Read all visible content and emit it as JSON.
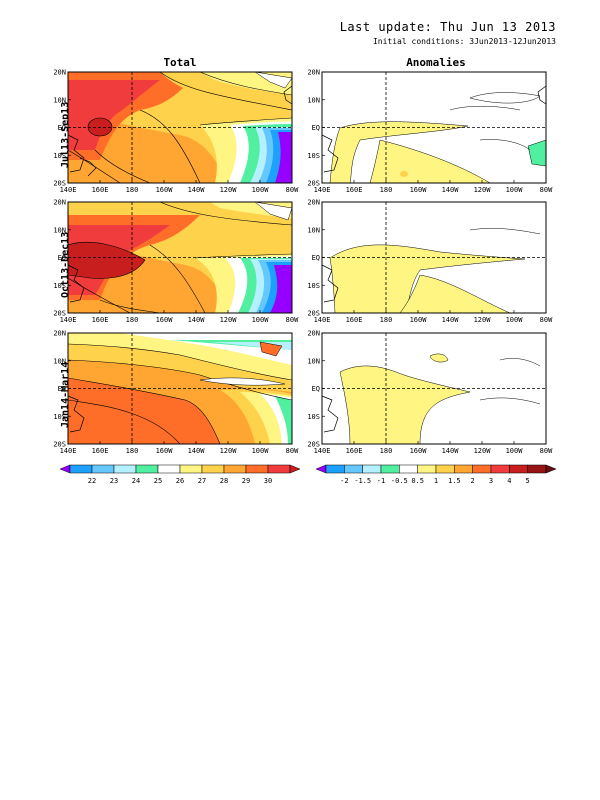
{
  "header": {
    "last_update": "Last update: Thu Jun 13 2013",
    "initial_conditions": "Initial conditions: 3Jun2013-12Jun2013"
  },
  "columns": [
    "Total",
    "Anomalies"
  ],
  "rows": [
    "Jul13-Sep13",
    "Oct13-Dec13",
    "Jan14-Mar14"
  ],
  "axes": {
    "lon_ticks": [
      "140E",
      "160E",
      "180",
      "160W",
      "140W",
      "120W",
      "100W",
      "80W"
    ],
    "lat_ticks": [
      "20N",
      "10N",
      "EQ",
      "10S",
      "20S"
    ]
  },
  "colorbars": {
    "total": {
      "labels": [
        "22",
        "23",
        "24",
        "25",
        "26",
        "27",
        "28",
        "29",
        "30"
      ],
      "colors": [
        "#9600ff",
        "#1ea0ff",
        "#64c8ff",
        "#b4f0ff",
        "#50f0a0",
        "#ffffff",
        "#fff582",
        "#ffd24c",
        "#ffa532",
        "#ff6e28",
        "#f03c3c",
        "#c81e1e"
      ]
    },
    "anomalies": {
      "labels": [
        "-2",
        "-1.5",
        "-1",
        "-0.5",
        "0.5",
        "1",
        "1.5",
        "2",
        "3",
        "4",
        "5"
      ],
      "colors": [
        "#9600ff",
        "#1ea0ff",
        "#64c8ff",
        "#b4f0ff",
        "#50f0a0",
        "#ffffff",
        "#fff582",
        "#ffd24c",
        "#ffa532",
        "#ff6e28",
        "#f03c3c",
        "#c81e1e",
        "#961414",
        "#641010"
      ]
    }
  }
}
